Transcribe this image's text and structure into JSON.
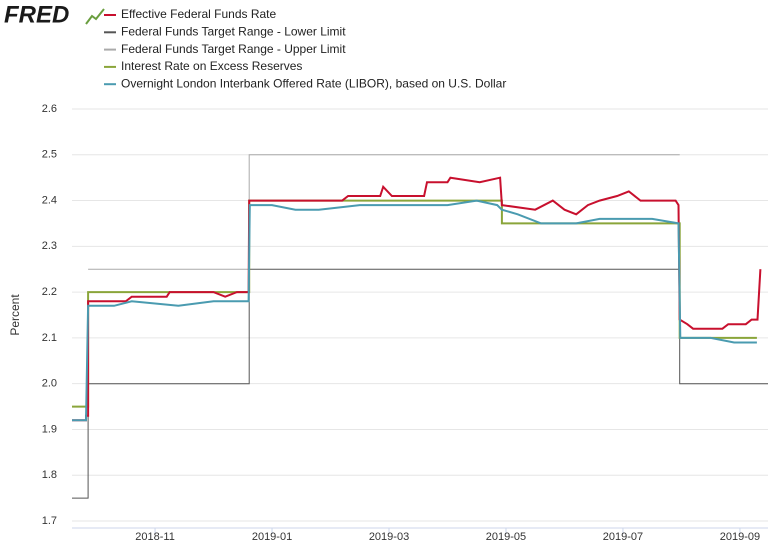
{
  "chart_data": {
    "type": "line",
    "logo": "FRED",
    "ylabel": "Percent",
    "xlim": [
      8.58,
      20.48
    ],
    "xticks": [
      {
        "value": 10,
        "label": "2018-11"
      },
      {
        "value": 12,
        "label": "2019-01"
      },
      {
        "value": 14,
        "label": "2019-03"
      },
      {
        "value": 16,
        "label": "2019-05"
      },
      {
        "value": 18,
        "label": "2019-07"
      },
      {
        "value": 20,
        "label": "2019-09"
      }
    ],
    "ylim": [
      1.7,
      2.6
    ],
    "yticks": [
      1.7,
      1.8,
      1.9,
      {
        "value": 2,
        "label": "2.0"
      },
      2.1,
      2.2,
      2.3,
      2.4,
      2.5,
      2.6
    ],
    "grid": true,
    "series": [
      {
        "name": "Effective Federal Funds Rate",
        "color": "#c8102e",
        "x": [
          8.58,
          8.82,
          8.82,
          8.855,
          8.855,
          9.5,
          9.6,
          10.2,
          10.25,
          11.0,
          11.2,
          11.4,
          11.6,
          11.61,
          13.2,
          13.3,
          13.85,
          13.9,
          14.05,
          14.6,
          14.65,
          15.0,
          15.05,
          15.55,
          15.9,
          15.93,
          16.5,
          16.8,
          17.0,
          17.2,
          17.4,
          17.6,
          17.9,
          18.1,
          18.3,
          18.9,
          18.95,
          18.97,
          19.1,
          19.2,
          19.7,
          19.8,
          20.1,
          20.2,
          20.3,
          20.35
        ],
        "values": [
          1.92,
          1.92,
          1.93,
          1.93,
          2.18,
          2.18,
          2.19,
          2.19,
          2.2,
          2.2,
          2.19,
          2.2,
          2.2,
          2.4,
          2.4,
          2.41,
          2.41,
          2.43,
          2.41,
          2.41,
          2.44,
          2.44,
          2.45,
          2.44,
          2.45,
          2.39,
          2.38,
          2.4,
          2.38,
          2.37,
          2.39,
          2.4,
          2.41,
          2.42,
          2.4,
          2.4,
          2.39,
          2.14,
          2.13,
          2.12,
          2.12,
          2.13,
          2.13,
          2.14,
          2.14,
          2.25
        ]
      },
      {
        "name": "Federal Funds Target Range - Lower Limit",
        "color": "#555555",
        "x": [
          8.58,
          8.855,
          8.855,
          11.61,
          11.61,
          18.97,
          18.97,
          20.48
        ],
        "values": [
          1.75,
          1.75,
          2.0,
          2.0,
          2.25,
          2.25,
          2.0,
          2.0
        ]
      },
      {
        "name": "Federal Funds Target Range - Upper Limit",
        "color": "#aaaaaa",
        "x": [
          8.855,
          11.61,
          11.61,
          18.97
        ],
        "values": [
          2.25,
          2.25,
          2.5,
          2.5
        ]
      },
      {
        "name": "Interest Rate on Excess Reserves",
        "color": "#8aa53a",
        "x": [
          8.58,
          8.855,
          8.855,
          11.61,
          11.61,
          15.93,
          15.93,
          18.97,
          18.97,
          20.29
        ],
        "values": [
          1.95,
          1.95,
          2.2,
          2.2,
          2.4,
          2.4,
          2.35,
          2.35,
          2.1,
          2.1
        ]
      },
      {
        "name": "Overnight London Interbank Offered Rate (LIBOR), based on U.S. Dollar",
        "color": "#4a9bb0",
        "x": [
          8.58,
          8.82,
          8.855,
          9.3,
          9.6,
          10.4,
          11.0,
          11.4,
          11.6,
          11.62,
          12.0,
          12.4,
          12.8,
          13.5,
          14.2,
          15.0,
          15.5,
          15.85,
          15.93,
          16.2,
          16.6,
          17.2,
          17.6,
          18.0,
          18.5,
          18.95,
          18.98,
          19.5,
          19.9,
          20.29
        ],
        "values": [
          1.92,
          1.92,
          2.17,
          2.17,
          2.18,
          2.17,
          2.18,
          2.18,
          2.18,
          2.39,
          2.39,
          2.38,
          2.38,
          2.39,
          2.39,
          2.39,
          2.4,
          2.39,
          2.38,
          2.37,
          2.35,
          2.35,
          2.36,
          2.36,
          2.36,
          2.35,
          2.1,
          2.1,
          2.09,
          2.09
        ]
      }
    ]
  }
}
